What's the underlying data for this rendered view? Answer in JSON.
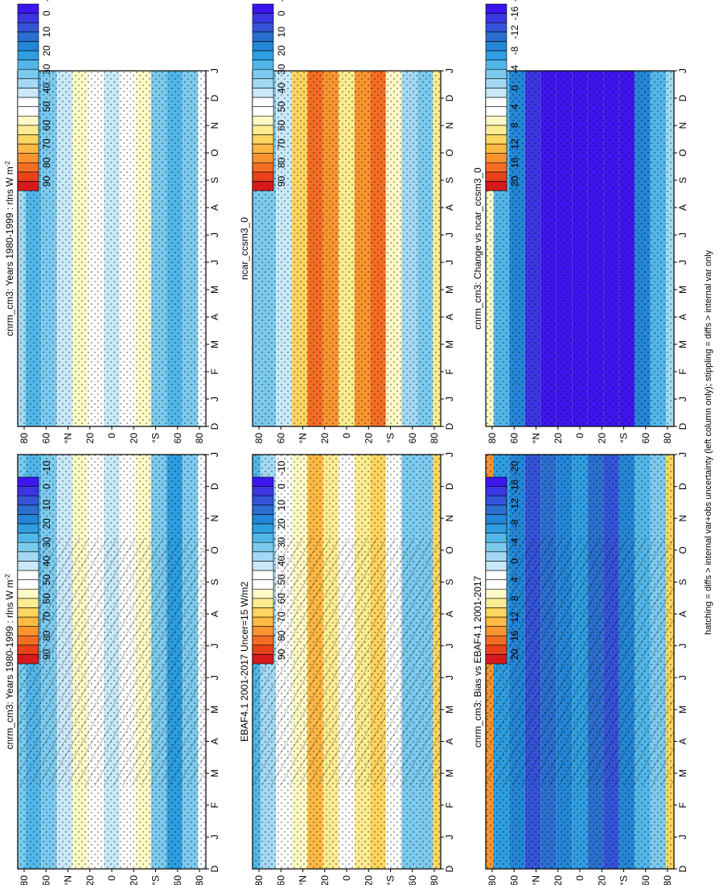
{
  "figure": {
    "footnote": "hatching = diffs > internal var+obs uncertainty (left column only); stippling = diffs > internal var only"
  },
  "colorbars": {
    "main": {
      "labels": [
        "90",
        "80",
        "70",
        "60",
        "50",
        "40",
        "30",
        "20",
        "10",
        "0",
        "-10"
      ],
      "colors": [
        "#d7191c",
        "#e9421a",
        "#f46d24",
        "#f9952f",
        "#fcb943",
        "#fdd560",
        "#feec90",
        "#fff9c8",
        "#ffffff",
        "#ffffff",
        "#c9e9f9",
        "#a3d9f4",
        "#7ccaee",
        "#53b6e8",
        "#2f9ee0",
        "#2486d6",
        "#2b6fd0",
        "#3454d8",
        "#3b36e2",
        "#3d16ef"
      ]
    },
    "diff": {
      "labels": [
        "20",
        "16",
        "12",
        "8",
        "4",
        "0",
        "-4",
        "-8",
        "-12",
        "-16",
        "-20"
      ],
      "colors": [
        "#d7191c",
        "#e9421a",
        "#f46d24",
        "#f9952f",
        "#fcb943",
        "#fdd560",
        "#feec90",
        "#fff9c8",
        "#ffffff",
        "#ffffff",
        "#c9e9f9",
        "#a3d9f4",
        "#7ccaee",
        "#53b6e8",
        "#2f9ee0",
        "#2486d6",
        "#2b6fd0",
        "#3454d8",
        "#3b36e2",
        "#3d16ef"
      ]
    }
  },
  "chart_data": [
    {
      "type": "heatmap",
      "title": "cnrm_cm3: Years 1980-1999 : rlns W m",
      "title_superscript": "-2",
      "colorbar": "main",
      "hatching": true,
      "months": [
        "D",
        "J",
        "F",
        "M",
        "A",
        "M",
        "J",
        "J",
        "A",
        "S",
        "O",
        "N",
        "D",
        "J"
      ],
      "lat_ticks": [
        "80",
        "60",
        "°N",
        "20",
        "0",
        "20",
        "°S",
        "60",
        "80"
      ],
      "bands": [
        {
          "lat": 90,
          "value": 30
        },
        {
          "lat": 75,
          "value": 25
        },
        {
          "lat": 60,
          "value": 30
        },
        {
          "lat": 45,
          "value": 38
        },
        {
          "lat": 30,
          "value": 55
        },
        {
          "lat": 15,
          "value": 45
        },
        {
          "lat": 0,
          "value": 40
        },
        {
          "lat": -15,
          "value": 48
        },
        {
          "lat": -30,
          "value": 52
        },
        {
          "lat": -45,
          "value": 28
        },
        {
          "lat": -60,
          "value": 20
        },
        {
          "lat": -75,
          "value": 30
        },
        {
          "lat": -90,
          "value": 48
        }
      ]
    },
    {
      "type": "heatmap",
      "title": "cnrm_cm3: Years 1980-1999 : rlns W m",
      "title_superscript": "-2",
      "colorbar": "main",
      "hatching": false,
      "months": [
        "D",
        "J",
        "F",
        "M",
        "A",
        "M",
        "J",
        "J",
        "A",
        "S",
        "O",
        "N",
        "D",
        "J"
      ],
      "lat_ticks": [
        "80",
        "60",
        "°N",
        "20",
        "0",
        "20",
        "°S",
        "60",
        "80"
      ],
      "bands": [
        {
          "lat": 90,
          "value": 32
        },
        {
          "lat": 75,
          "value": 25
        },
        {
          "lat": 60,
          "value": 30
        },
        {
          "lat": 45,
          "value": 38
        },
        {
          "lat": 30,
          "value": 55
        },
        {
          "lat": 15,
          "value": 45
        },
        {
          "lat": 0,
          "value": 40
        },
        {
          "lat": -15,
          "value": 48
        },
        {
          "lat": -30,
          "value": 52
        },
        {
          "lat": -45,
          "value": 28
        },
        {
          "lat": -60,
          "value": 22
        },
        {
          "lat": -75,
          "value": 30
        },
        {
          "lat": -90,
          "value": 48
        }
      ]
    },
    {
      "type": "heatmap",
      "title": "EBAF4.1 2001-2017 Uncer=15 W/m2",
      "colorbar": "main",
      "hatching": true,
      "months": [
        "D",
        "J",
        "F",
        "M",
        "A",
        "M",
        "J",
        "J",
        "A",
        "S",
        "O",
        "N",
        "D",
        "J"
      ],
      "lat_ticks": [
        "80",
        "60",
        "°N",
        "20",
        "0",
        "20",
        "°S",
        "60",
        "80"
      ],
      "bands": [
        {
          "lat": 90,
          "value": 25
        },
        {
          "lat": 75,
          "value": 35
        },
        {
          "lat": 60,
          "value": 42
        },
        {
          "lat": 45,
          "value": 55
        },
        {
          "lat": 30,
          "value": 68
        },
        {
          "lat": 15,
          "value": 60
        },
        {
          "lat": 0,
          "value": 45
        },
        {
          "lat": -15,
          "value": 60
        },
        {
          "lat": -30,
          "value": 65
        },
        {
          "lat": -45,
          "value": 48
        },
        {
          "lat": -60,
          "value": 30
        },
        {
          "lat": -75,
          "value": 28
        },
        {
          "lat": -90,
          "value": 62
        }
      ]
    },
    {
      "type": "heatmap",
      "title": "ncar_ccsm3_0",
      "colorbar": "main",
      "hatching": false,
      "months": [
        "D",
        "J",
        "F",
        "M",
        "A",
        "M",
        "J",
        "J",
        "A",
        "S",
        "O",
        "N",
        "D",
        "J"
      ],
      "lat_ticks": [
        "80",
        "60",
        "°N",
        "20",
        "0",
        "20",
        "°S",
        "60",
        "80"
      ],
      "bands": [
        {
          "lat": 90,
          "value": 28
        },
        {
          "lat": 75,
          "value": 30
        },
        {
          "lat": 60,
          "value": 40
        },
        {
          "lat": 45,
          "value": 62
        },
        {
          "lat": 30,
          "value": 80
        },
        {
          "lat": 15,
          "value": 75
        },
        {
          "lat": 0,
          "value": 60
        },
        {
          "lat": -15,
          "value": 74
        },
        {
          "lat": -30,
          "value": 78
        },
        {
          "lat": -45,
          "value": 55
        },
        {
          "lat": -60,
          "value": 35
        },
        {
          "lat": -75,
          "value": 30
        },
        {
          "lat": -90,
          "value": 58
        }
      ]
    },
    {
      "type": "heatmap",
      "title": "cnrm_cm3: Bias vs EBAF4.1 2001-2017",
      "colorbar": "diff",
      "hatching": true,
      "months": [
        "D",
        "J",
        "F",
        "M",
        "A",
        "M",
        "J",
        "J",
        "A",
        "S",
        "O",
        "N",
        "D",
        "J"
      ],
      "lat_ticks": [
        "80",
        "60",
        "°N",
        "20",
        "0",
        "20",
        "°S",
        "60",
        "80"
      ],
      "bands": [
        {
          "lat": 90,
          "value": 14
        },
        {
          "lat": 75,
          "value": -8
        },
        {
          "lat": 60,
          "value": -10
        },
        {
          "lat": 45,
          "value": -14
        },
        {
          "lat": 30,
          "value": -12
        },
        {
          "lat": 15,
          "value": -10
        },
        {
          "lat": 0,
          "value": -8
        },
        {
          "lat": -15,
          "value": -12
        },
        {
          "lat": -30,
          "value": -14
        },
        {
          "lat": -45,
          "value": -10
        },
        {
          "lat": -60,
          "value": -6
        },
        {
          "lat": -75,
          "value": -4
        },
        {
          "lat": -90,
          "value": 10
        }
      ]
    },
    {
      "type": "heatmap",
      "title": "cnrm_cm3: Change vs ncar_ccsm3_0",
      "colorbar": "diff",
      "hatching": false,
      "months": [
        "D",
        "J",
        "F",
        "M",
        "A",
        "M",
        "J",
        "J",
        "A",
        "S",
        "O",
        "N",
        "D",
        "J"
      ],
      "lat_ticks": [
        "80",
        "60",
        "°N",
        "20",
        "0",
        "20",
        "°S",
        "60",
        "80"
      ],
      "bands": [
        {
          "lat": 90,
          "value": 6
        },
        {
          "lat": 75,
          "value": -6
        },
        {
          "lat": 60,
          "value": -10
        },
        {
          "lat": 45,
          "value": -16
        },
        {
          "lat": 30,
          "value": -22
        },
        {
          "lat": 15,
          "value": -20
        },
        {
          "lat": 0,
          "value": -18
        },
        {
          "lat": -15,
          "value": -22
        },
        {
          "lat": -30,
          "value": -22
        },
        {
          "lat": -45,
          "value": -18
        },
        {
          "lat": -60,
          "value": -10
        },
        {
          "lat": -75,
          "value": -6
        },
        {
          "lat": -90,
          "value": -3
        }
      ]
    }
  ]
}
